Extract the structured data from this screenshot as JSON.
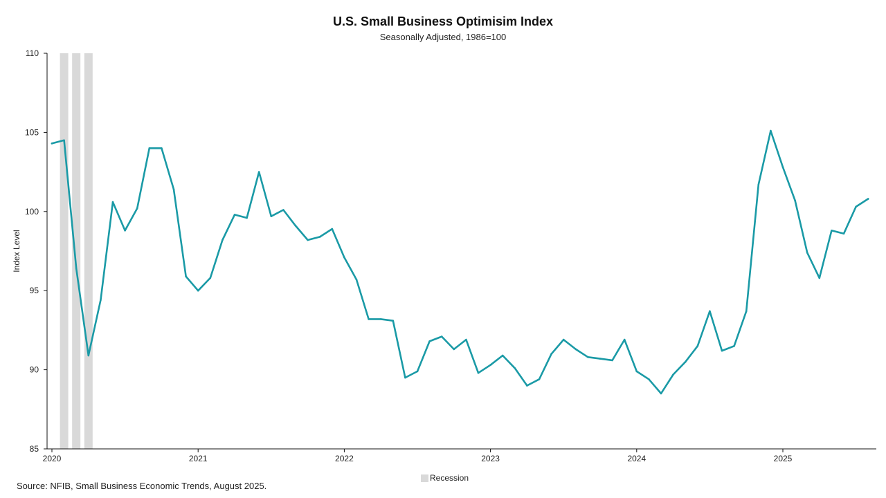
{
  "chart_data": {
    "type": "line",
    "title": "U.S. Small Business Optimisim Index",
    "subtitle": "Seasonally Adjusted, 1986=100",
    "ylabel": "Index Level",
    "xlabel": "",
    "ylim": [
      85,
      110
    ],
    "yticks": [
      85,
      90,
      95,
      100,
      105,
      110
    ],
    "xticks": [
      "2020",
      "2021",
      "2022",
      "2023",
      "2024",
      "2025"
    ],
    "x_start": "2020-01",
    "x_end": "2025-08",
    "grid": false,
    "legend": {
      "position": "bottom-center",
      "items": [
        "Recession"
      ]
    },
    "recession_months": [
      "2020-02",
      "2020-03",
      "2020-04"
    ],
    "series": [
      {
        "line_color": "#1a9aa6",
        "x": [
          "2020-01",
          "2020-02",
          "2020-03",
          "2020-04",
          "2020-05",
          "2020-06",
          "2020-07",
          "2020-08",
          "2020-09",
          "2020-10",
          "2020-11",
          "2020-12",
          "2021-01",
          "2021-02",
          "2021-03",
          "2021-04",
          "2021-05",
          "2021-06",
          "2021-07",
          "2021-08",
          "2021-09",
          "2021-10",
          "2021-11",
          "2021-12",
          "2022-01",
          "2022-02",
          "2022-03",
          "2022-04",
          "2022-05",
          "2022-06",
          "2022-07",
          "2022-08",
          "2022-09",
          "2022-10",
          "2022-11",
          "2022-12",
          "2023-01",
          "2023-02",
          "2023-03",
          "2023-04",
          "2023-05",
          "2023-06",
          "2023-07",
          "2023-08",
          "2023-09",
          "2023-10",
          "2023-11",
          "2023-12",
          "2024-01",
          "2024-02",
          "2024-03",
          "2024-04",
          "2024-05",
          "2024-06",
          "2024-07",
          "2024-08",
          "2024-09",
          "2024-10",
          "2024-11",
          "2024-12",
          "2025-01",
          "2025-02",
          "2025-03",
          "2025-04",
          "2025-05",
          "2025-06",
          "2025-07",
          "2025-08"
        ],
        "values": [
          104.3,
          104.5,
          96.4,
          90.9,
          94.4,
          100.6,
          98.8,
          100.2,
          104.0,
          104.0,
          101.4,
          95.9,
          95.0,
          95.8,
          98.2,
          99.8,
          99.6,
          102.5,
          99.7,
          100.1,
          99.1,
          98.2,
          98.4,
          98.9,
          97.1,
          95.7,
          93.2,
          93.2,
          93.1,
          89.5,
          89.9,
          91.8,
          92.1,
          91.3,
          91.9,
          89.8,
          90.3,
          90.9,
          90.1,
          89.0,
          89.4,
          91.0,
          91.9,
          91.3,
          90.8,
          90.7,
          90.6,
          91.9,
          89.9,
          89.4,
          88.5,
          89.7,
          90.5,
          91.5,
          93.7,
          91.2,
          91.5,
          93.7,
          101.7,
          105.1,
          102.8,
          100.7,
          97.4,
          95.8,
          98.8,
          98.6,
          100.3,
          100.8
        ]
      }
    ]
  },
  "footer": {
    "source": "Source: NFIB, Small Business Economic Trends, August 2025."
  },
  "colors": {
    "recession": "#d9d9d9",
    "axis": "#111111"
  }
}
